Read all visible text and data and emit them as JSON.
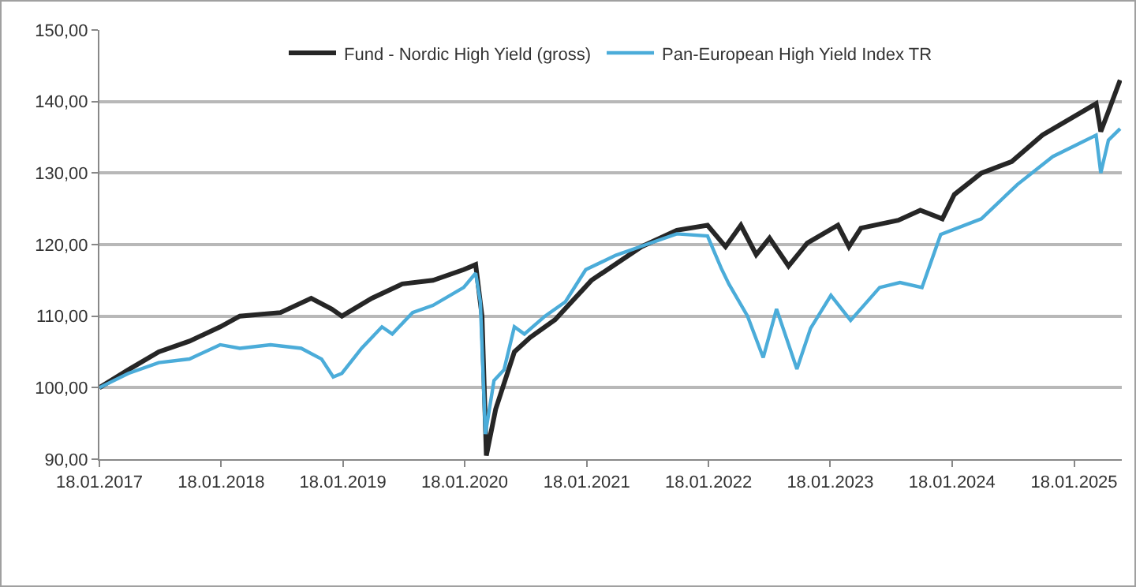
{
  "chart_data": {
    "type": "line",
    "legend": "top",
    "grid": "y",
    "line_style": "solid",
    "marker": "none",
    "xlim": [
      "2017-01-18",
      "2025-06-10"
    ],
    "xticks": [
      {
        "value": "2017-01-18",
        "label": "18.01.2017"
      },
      {
        "value": "2018-01-18",
        "label": "18.01.2018"
      },
      {
        "value": "2019-01-18",
        "label": "18.01.2019"
      },
      {
        "value": "2020-01-18",
        "label": "18.01.2020"
      },
      {
        "value": "2021-01-18",
        "label": "18.01.2021"
      },
      {
        "value": "2022-01-18",
        "label": "18.01.2022"
      },
      {
        "value": "2023-01-18",
        "label": "18.01.2023"
      },
      {
        "value": "2024-01-18",
        "label": "18.01.2024"
      },
      {
        "value": "2025-01-18",
        "label": "18.01.2025"
      }
    ],
    "ylim": [
      90,
      150
    ],
    "yticks": [
      {
        "value": 90,
        "label": "90,00"
      },
      {
        "value": 100,
        "label": "100,00"
      },
      {
        "value": 110,
        "label": "110,00"
      },
      {
        "value": 120,
        "label": "120,00"
      },
      {
        "value": 130,
        "label": "130,00"
      },
      {
        "value": 140,
        "label": "140,00"
      },
      {
        "value": 150,
        "label": "150,00"
      }
    ],
    "series": [
      {
        "name": "Fund - Nordic High Yield (gross)",
        "color": "#262626",
        "x": [
          "2017-01-18",
          "2017-04-15",
          "2017-07-15",
          "2017-10-15",
          "2018-01-15",
          "2018-03-15",
          "2018-07-15",
          "2018-10-15",
          "2018-12-15",
          "2019-01-15",
          "2019-04-15",
          "2019-07-15",
          "2019-10-15",
          "2020-01-15",
          "2020-02-20",
          "2020-03-10",
          "2020-03-23",
          "2020-04-20",
          "2020-06-15",
          "2020-08-01",
          "2020-10-15",
          "2021-02-01",
          "2021-07-01",
          "2021-10-15",
          "2022-01-15",
          "2022-03-10",
          "2022-04-25",
          "2022-06-10",
          "2022-07-20",
          "2022-09-15",
          "2022-11-10",
          "2023-02-10",
          "2023-03-15",
          "2023-04-20",
          "2023-08-10",
          "2023-10-15",
          "2023-12-20",
          "2024-01-25",
          "2024-04-15",
          "2024-07-15",
          "2024-10-15",
          "2025-03-25",
          "2025-04-08",
          "2025-04-30",
          "2025-06-05"
        ],
        "values": [
          100,
          102.5,
          105,
          106.5,
          108.5,
          110,
          110.5,
          112.5,
          111,
          110,
          112.5,
          114.5,
          115,
          116.5,
          117.2,
          110,
          90.5,
          97,
          105,
          107,
          109.5,
          115,
          119.7,
          122,
          122.7,
          119.7,
          122.7,
          118.6,
          120.9,
          117,
          120.2,
          122.7,
          119.7,
          122.3,
          123.4,
          124.8,
          123.6,
          127,
          130,
          131.6,
          135.3,
          139.7,
          135.8,
          138.5,
          143
        ]
      },
      {
        "name": "Pan-European High Yield Index TR",
        "color": "#4bacd9",
        "x": [
          "2017-01-18",
          "2017-04-15",
          "2017-07-15",
          "2017-10-15",
          "2018-01-15",
          "2018-03-15",
          "2018-06-15",
          "2018-09-15",
          "2018-11-15",
          "2018-12-20",
          "2019-01-15",
          "2019-03-15",
          "2019-05-15",
          "2019-06-15",
          "2019-08-15",
          "2019-10-15",
          "2020-01-15",
          "2020-02-20",
          "2020-03-05",
          "2020-03-20",
          "2020-04-15",
          "2020-05-15",
          "2020-06-15",
          "2020-07-15",
          "2020-09-15",
          "2020-11-15",
          "2021-01-15",
          "2021-04-15",
          "2021-07-15",
          "2021-10-15",
          "2022-01-15",
          "2022-02-25",
          "2022-03-20",
          "2022-05-15",
          "2022-07-01",
          "2022-08-10",
          "2022-10-10",
          "2022-11-20",
          "2023-01-20",
          "2023-03-20",
          "2023-06-15",
          "2023-08-15",
          "2023-10-20",
          "2023-12-15",
          "2024-04-15",
          "2024-08-01",
          "2024-11-15",
          "2025-03-25",
          "2025-04-08",
          "2025-05-01",
          "2025-06-05"
        ],
        "values": [
          100,
          102,
          103.5,
          104,
          106,
          105.5,
          106,
          105.5,
          104,
          101.5,
          102,
          105.5,
          108.5,
          107.5,
          110.5,
          111.5,
          114,
          116,
          112,
          93.5,
          101,
          102.5,
          108.5,
          107.5,
          110,
          112,
          116.5,
          118.5,
          120,
          121.5,
          121.2,
          116.7,
          114.5,
          110,
          104.2,
          111,
          102.6,
          108.3,
          112.9,
          109.4,
          114,
          114.7,
          114,
          121.4,
          123.6,
          128.4,
          132.3,
          135.3,
          130,
          134.6,
          136.2
        ]
      }
    ]
  }
}
